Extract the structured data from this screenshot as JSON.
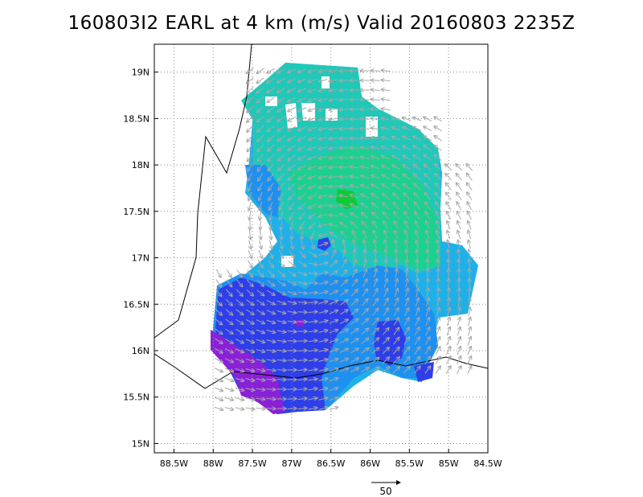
{
  "title": "160803I2 EARL at 4 km (m/s) Valid 20160803 2235Z",
  "map": {
    "lon_range": [
      -88.75,
      -84.5
    ],
    "lat_range": [
      14.9,
      19.3
    ],
    "x_ticks": [
      "88.5W",
      "88W",
      "87.5W",
      "87W",
      "86.5W",
      "86W",
      "85.5W",
      "85W",
      "84.5W"
    ],
    "x_tick_values": [
      -88.5,
      -88.0,
      -87.5,
      -87.0,
      -86.5,
      -86.0,
      -85.5,
      -85.0,
      -84.5
    ],
    "y_ticks": [
      "15N",
      "15.5N",
      "16N",
      "16.5N",
      "17N",
      "17.5N",
      "18N",
      "18.5N",
      "19N"
    ],
    "y_tick_values": [
      15.0,
      15.5,
      16.0,
      16.5,
      17.0,
      17.5,
      18.0,
      18.5,
      19.0
    ],
    "grid": "dotted",
    "storm_center": {
      "lon": -86.6,
      "lat": 17.15
    },
    "colors": {
      "purple": "#8a20d8",
      "dark_blue": "#2e3ee8",
      "blue": "#1e90f0",
      "light_blue": "#1fb0e8",
      "cyan": "#20c8b8",
      "teal_green": "#1cd090",
      "green": "#10c838",
      "vector": "#a8a8a8",
      "coastline": "#000000"
    }
  },
  "reference_vector": {
    "label": "50"
  }
}
